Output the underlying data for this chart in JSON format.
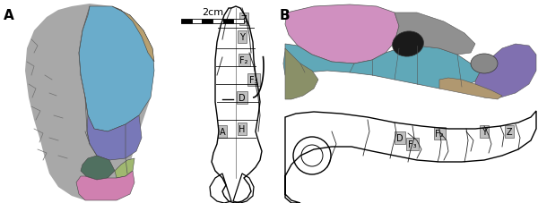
{
  "figure_width": 6.0,
  "figure_height": 2.28,
  "dpi": 100,
  "background_color": "#ffffff",
  "panel_A_label": "A",
  "panel_B_label": "B",
  "scale_bar_text": "2cm",
  "label_fontsize": 11,
  "label_fontweight": "bold",
  "scale_fontsize": 8,
  "ann_fontsize": 7,
  "colors": {
    "gray_skull": "#a8a8a8",
    "blue_region": "#6aaccb",
    "purple_region": "#7878b8",
    "tan_region": "#b8a070",
    "pink_region": "#d080b0",
    "green_dark": "#507060",
    "green_light": "#a0b870",
    "gray_light": "#c8c8c8",
    "skull_bg": "#e8e8e8",
    "pink_lateral": "#d090c0",
    "teal_lateral": "#60a8b8",
    "olive_lateral": "#8a9068",
    "purple_lateral": "#8070b0",
    "tan_lateral": "#b09870",
    "gray_lateral": "#909090",
    "label_bg": "#b8b8b8"
  }
}
